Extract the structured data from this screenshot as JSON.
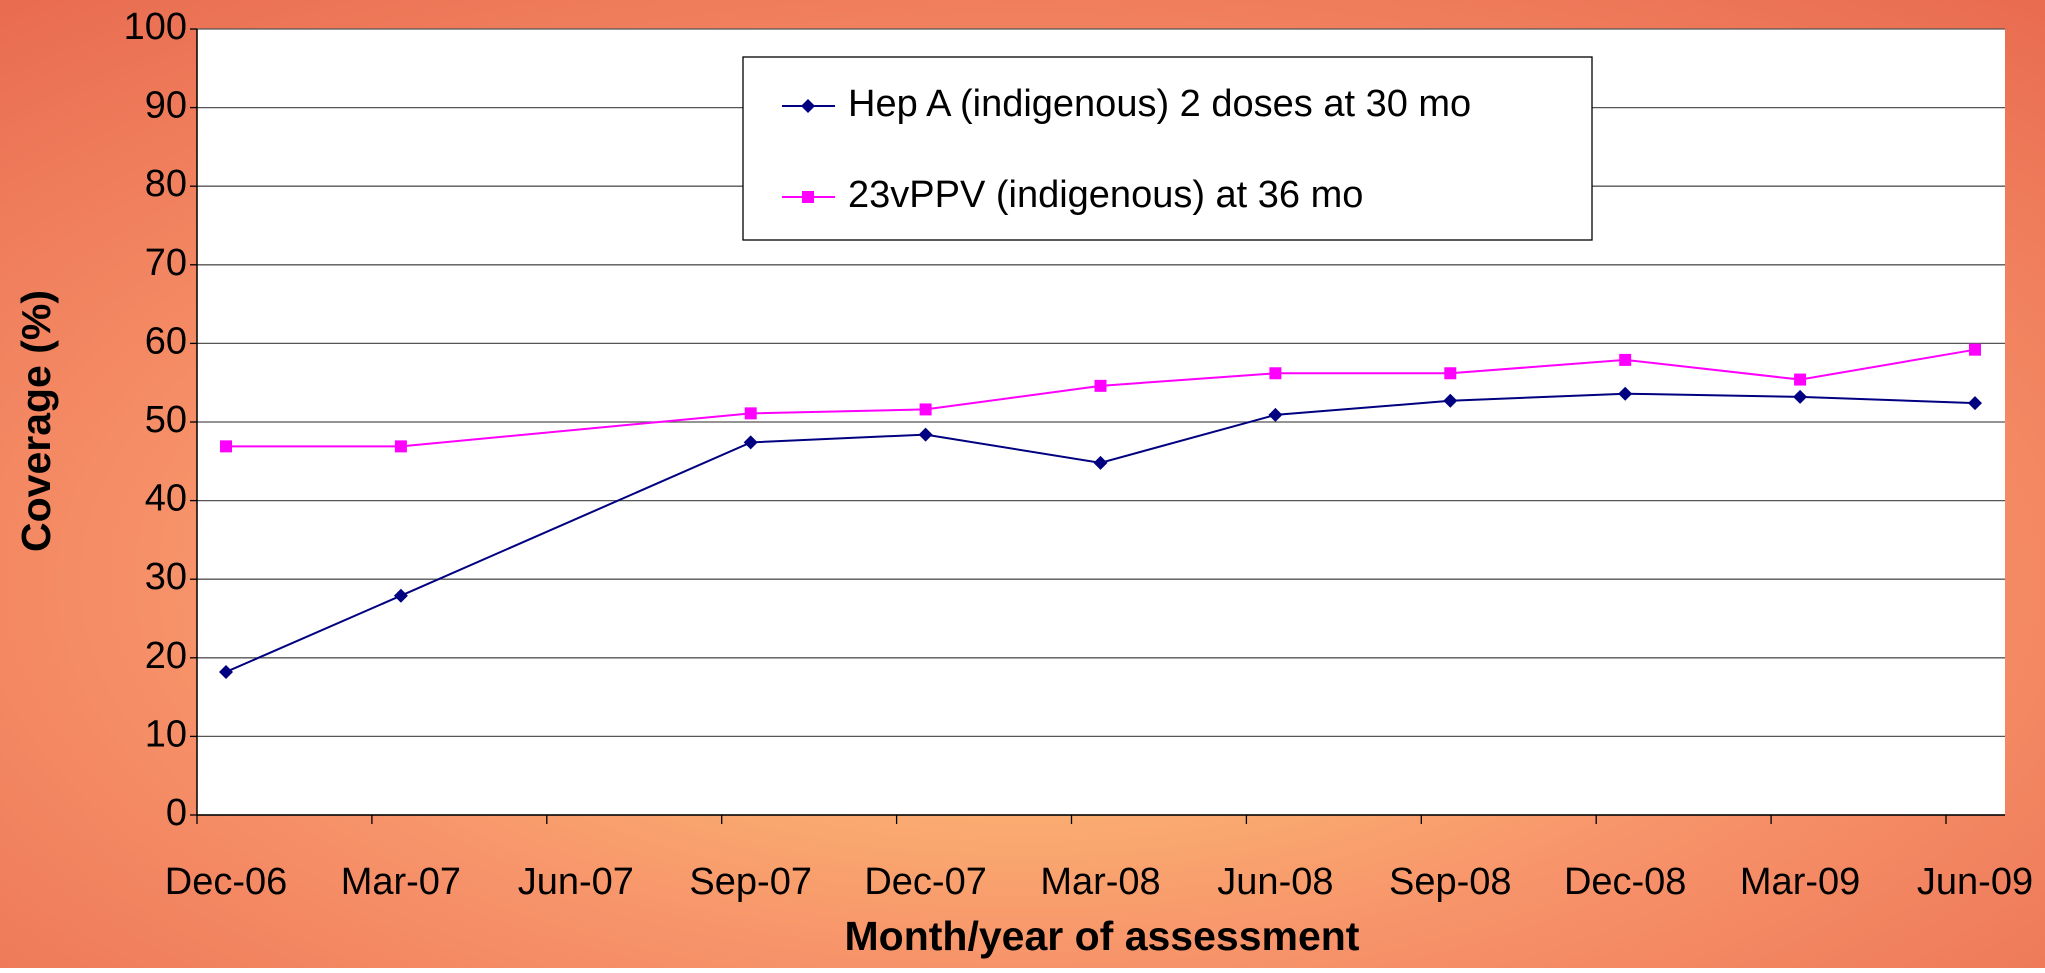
{
  "chart_data": {
    "type": "line",
    "x_label": "Month/year of assessment",
    "y_label": "Coverage (%)",
    "categories": [
      "Dec-06",
      "Mar-07",
      "Jun-07",
      "Sep-07",
      "Dec-07",
      "Mar-08",
      "Jun-08",
      "Sep-08",
      "Dec-08",
      "Mar-09",
      "Jun-09"
    ],
    "series": [
      {
        "name": "Hep A (indigenous) 2 doses at 30 mo",
        "color": "#000080",
        "marker": "diamond",
        "values": [
          18.2,
          27.9,
          null,
          47.4,
          48.4,
          44.8,
          50.9,
          52.7,
          53.6,
          53.2,
          52.4
        ]
      },
      {
        "name": "23vPPV (indigenous) at 36 mo",
        "color": "#ff00ff",
        "marker": "square",
        "values": [
          46.9,
          46.9,
          null,
          51.1,
          51.6,
          54.6,
          56.2,
          56.2,
          57.9,
          55.4,
          59.2
        ]
      }
    ],
    "connect_gaps": true,
    "ylim": [
      0,
      100
    ],
    "yticks": [
      0,
      10,
      20,
      30,
      40,
      50,
      60,
      70,
      80,
      90,
      100
    ],
    "grid": true,
    "legend": "top"
  }
}
